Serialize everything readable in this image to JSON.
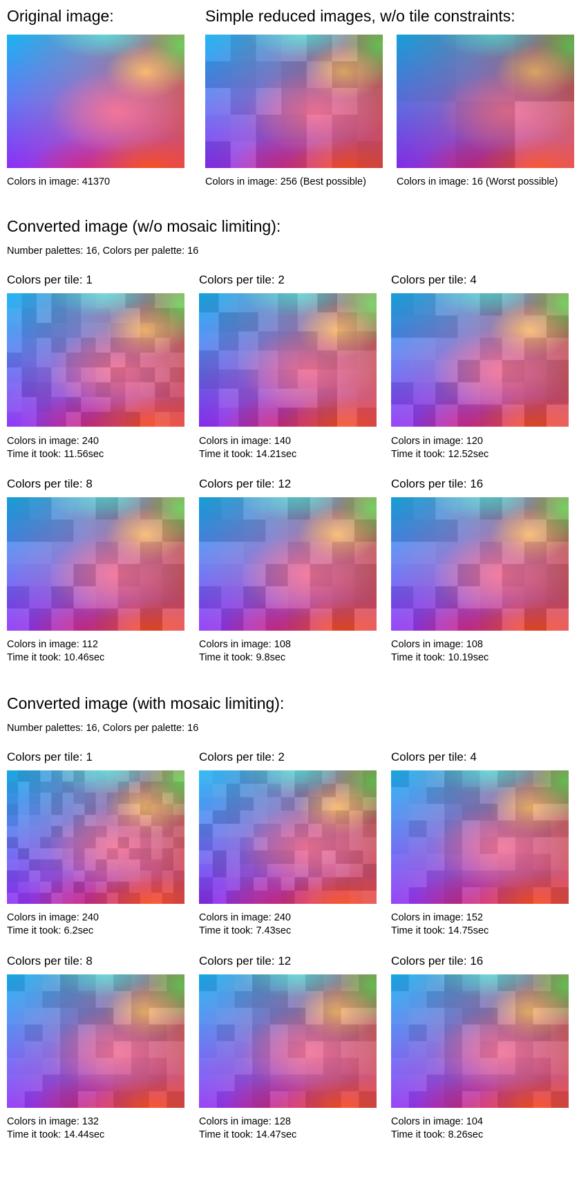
{
  "top": {
    "original": {
      "heading": "Original image:",
      "caption": "Colors in image: 41370"
    },
    "reduced": {
      "heading": "Simple reduced images, w/o tile constraints:",
      "captions": [
        "Colors in image: 256 (Best possible)",
        "Colors in image: 16 (Worst possible)"
      ]
    }
  },
  "sections": [
    {
      "title": "Converted image (w/o mosaic limiting):",
      "subtitle": "Number palettes: 16,  Colors per palette: 16",
      "items": [
        {
          "label": "Colors per tile: 1",
          "colors": "Colors in image: 240",
          "time": "Time it took: 11.56sec"
        },
        {
          "label": "Colors per tile: 2",
          "colors": "Colors in image: 140",
          "time": "Time it took: 14.21sec"
        },
        {
          "label": "Colors per tile: 4",
          "colors": "Colors in image: 120",
          "time": "Time it took: 12.52sec"
        },
        {
          "label": "Colors per tile: 8",
          "colors": "Colors in image: 112",
          "time": "Time it took: 10.46sec"
        },
        {
          "label": "Colors per tile: 12",
          "colors": "Colors in image: 108",
          "time": "Time it took: 9.8sec"
        },
        {
          "label": "Colors per tile: 16",
          "colors": "Colors in image: 108",
          "time": "Time it took: 10.19sec"
        }
      ]
    },
    {
      "title": "Converted image (with mosaic limiting):",
      "subtitle": "Number palettes: 16,  Colors per palette: 16",
      "items": [
        {
          "label": "Colors per tile: 1",
          "colors": "Colors in image: 240",
          "time": "Time it took: 6.2sec"
        },
        {
          "label": "Colors per tile: 2",
          "colors": "Colors in image: 240",
          "time": "Time it took: 7.43sec"
        },
        {
          "label": "Colors per tile: 4",
          "colors": "Colors in image: 152",
          "time": "Time it took: 14.75sec"
        },
        {
          "label": "Colors per tile: 8",
          "colors": "Colors in image: 132",
          "time": "Time it took: 14.44sec"
        },
        {
          "label": "Colors per tile: 12",
          "colors": "Colors in image: 128",
          "time": "Time it took: 14.47sec"
        },
        {
          "label": "Colors per tile: 16",
          "colors": "Colors in image: 104",
          "time": "Time it took: 8.26sec"
        }
      ]
    }
  ]
}
